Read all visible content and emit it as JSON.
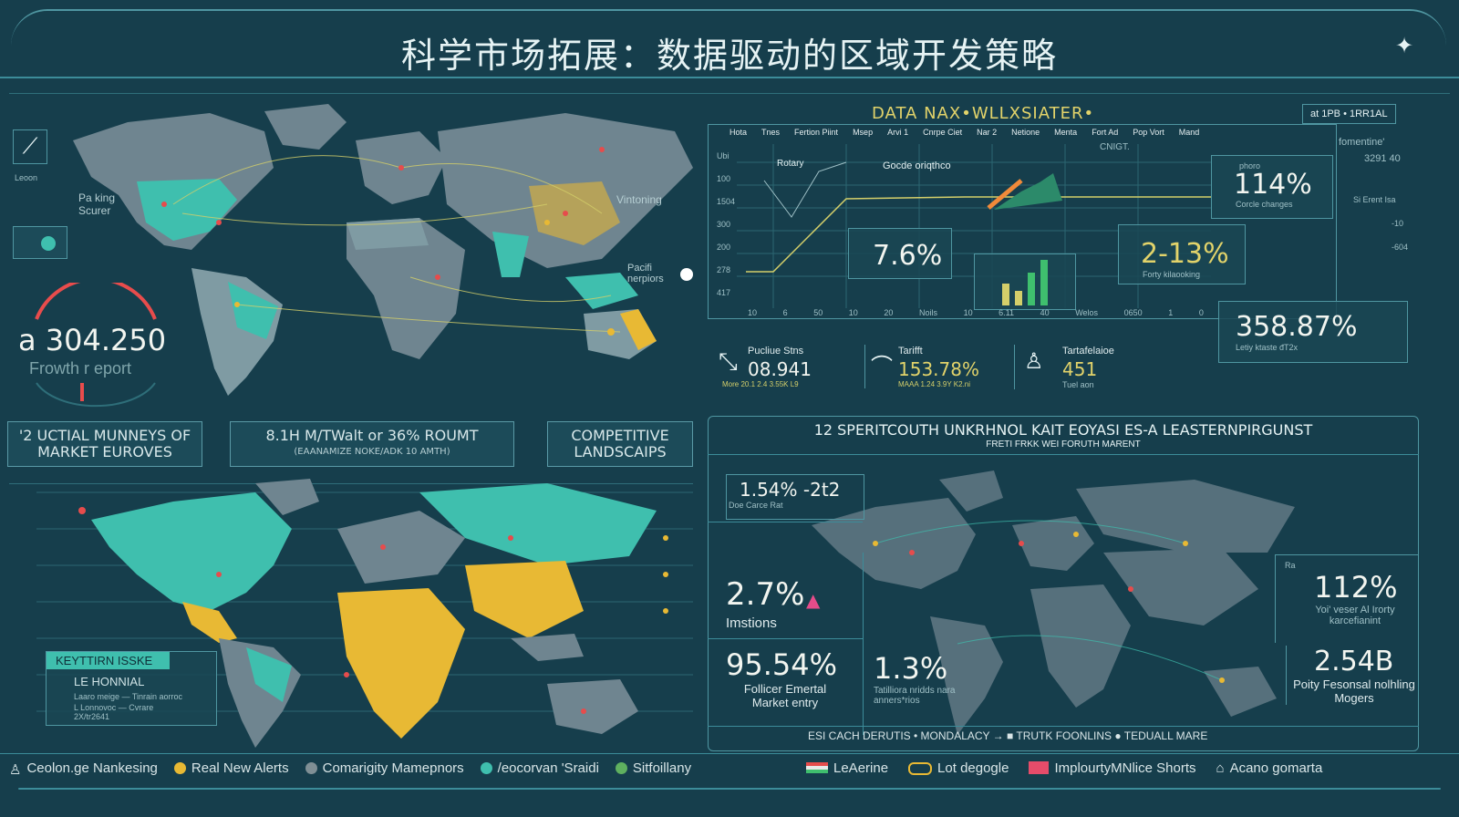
{
  "header": {
    "title": "科学市场拓展：数据驱动的区域开发策略"
  },
  "left_top": {
    "gauge_value": "a 304.250",
    "gauge_label": "Frowth r eport",
    "side_label": "Leoon",
    "labels": {
      "na": "Pa king Scurer",
      "asia": "Vintoning",
      "pacific": "Pacifi nerpiors"
    }
  },
  "subtitles": [
    {
      "line1": "'2 UCTIAL MUNNEYS OF",
      "line2": "MARKET EUROVES"
    },
    {
      "line1": "8.1H M/TWalt or 36% ROUMT",
      "line2": "(EAANAMIZE NOKE/ADK 10 AMTH)"
    },
    {
      "line1": "COMPETITIVE",
      "line2": "LANDSCAIPS"
    }
  ],
  "data_panel": {
    "title": "DATA NAX•WLLXSIATER•",
    "badge": "at 1PB • 1RR1AL",
    "columns": [
      "Hota",
      "Tnes",
      "Fertion Piint",
      "Msep",
      "Arvi 1",
      "Cnrpe Ciet",
      "Nar 2",
      "Netione",
      "Menta",
      "Fort Ad",
      "Pop Vort",
      "Mand"
    ],
    "right_labels": [
      "fomentine'",
      "3291 40",
      "Si Erent Isa",
      "-10",
      "-604"
    ],
    "rotary": "Rotary",
    "code": "Gocde oriqthco",
    "cent_note": "CNIGT.",
    "pct1": "7.6%",
    "pct2": "114%",
    "pct2_lbl": "Corcle changes",
    "pct2_tag": "phoro",
    "pct3": "2-13%",
    "pct3_lbl": "Forty kilaooking",
    "pct4": "358.87%",
    "pct4_lbl": "Letiy ktaste đT2x",
    "x_ticks": [
      "10",
      "6",
      "50",
      "10",
      "20",
      "Noils",
      "10",
      "6.11",
      "40",
      "Welos",
      "0650",
      "1",
      "0"
    ],
    "y_ticks": [
      "Ubi",
      "100",
      "1504",
      "300",
      "200",
      "278",
      "417"
    ]
  },
  "stats_row": [
    {
      "label": "Pucliue Stns",
      "value": "08.941",
      "sub": "More 20.1 2.4 3.55K L9"
    },
    {
      "label": "Tarifft",
      "value": "153.78%",
      "sub": "MAAA 1.24 3.9Y K2.ni"
    },
    {
      "label": "Tartafelaioe",
      "value": "451",
      "sub": "Tuel aon"
    }
  ],
  "bottom_right": {
    "header": "12 SPERITCOUTH UNKRHNOL KAIT EOYASI ES-A LEASTERNPIRGUNST",
    "subheader": "FRETI FRKK WEI FORUTH MARENT",
    "stat1_value": "1.54% -2t2",
    "stat1_label": "Doe Carce Rat",
    "stat2_value": "2.7%",
    "stat2_label": "Imstions",
    "stat3_value": "95.54%",
    "stat3_label": "Follicer Emertal Market entry",
    "stat4_value": "1.3%",
    "stat4_label": "Tatilliora nridds nara anners*rios",
    "stat5_value": "112%",
    "stat5_label": "Yoi' veser Al Irorty karcefianint",
    "stat5_tag": "Ra",
    "stat6_value": "2.54B",
    "stat6_label": "Poity Fesonsal nolhling Mogers",
    "footer": "ESI CACH DERUTIS • MONDALACY →  ■  TRUTK FOONLINS ● TEDUALL MARE"
  },
  "bottom_left_legend": {
    "title": "KEYTTIRN ISSKE",
    "item1": "LE HONNIAL",
    "item2": "Laaro meige  —  Tinrain aorroc",
    "item3": "L Lonnovoc — Cvrare 2X/tr2641"
  },
  "legend_bar": {
    "left": [
      {
        "label": "Ceolon.ge Nankesing",
        "color": "#cfe3e6"
      },
      {
        "label": "Real New Alerts",
        "color": "#e8b934"
      },
      {
        "label": "Comarigity Mamepnors",
        "color": "#7f8f95"
      },
      {
        "label": "/eocorvan 'Sraidi",
        "color": "#3fbfae"
      },
      {
        "label": "Sitfoillany",
        "color": "#5fb05f"
      }
    ],
    "right": [
      {
        "label": "LeAerine",
        "icon": "flag-icon"
      },
      {
        "label": "Lot degogle",
        "icon": "tag-icon"
      },
      {
        "label": "ImplourtyMNlice Shorts",
        "icon": "flag-red-icon"
      },
      {
        "label": "Acano gomarta",
        "icon": "house-icon"
      }
    ]
  },
  "colors": {
    "teal": "#3fbfae",
    "gold": "#e8b934",
    "land": "#6f8590",
    "frame": "#4f96a1",
    "bg": "#163e4c"
  }
}
